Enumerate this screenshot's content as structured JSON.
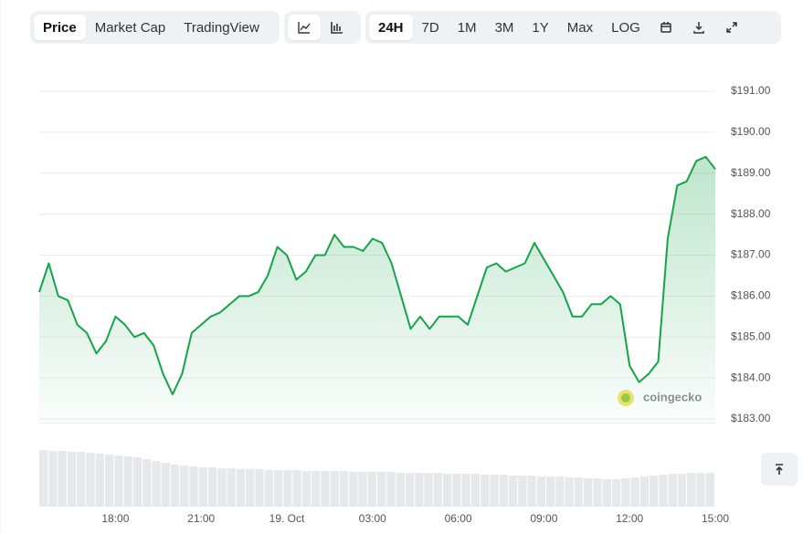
{
  "toolbar": {
    "views": [
      "Price",
      "Market Cap",
      "TradingView"
    ],
    "ranges": [
      "24H",
      "7D",
      "1M",
      "3M",
      "1Y",
      "Max",
      "LOG"
    ]
  },
  "chart_data": {
    "type": "line",
    "color": "#16a34a",
    "watermark": "coingecko",
    "categories": [
      null,
      null,
      null,
      null,
      null,
      null,
      null,
      null,
      "18:00",
      null,
      null,
      null,
      null,
      null,
      null,
      null,
      null,
      "21:00",
      null,
      null,
      null,
      null,
      null,
      null,
      null,
      null,
      "19. Oct",
      null,
      null,
      null,
      null,
      null,
      null,
      null,
      null,
      "03:00",
      null,
      null,
      null,
      null,
      null,
      null,
      null,
      null,
      "06:00",
      null,
      null,
      null,
      null,
      null,
      null,
      null,
      null,
      "09:00",
      null,
      null,
      null,
      null,
      null,
      null,
      null,
      null,
      "12:00",
      null,
      null,
      null,
      null,
      null,
      null,
      null,
      null,
      "15:00"
    ],
    "values": [
      186.1,
      186.8,
      186.0,
      185.9,
      185.3,
      185.1,
      184.6,
      184.9,
      185.5,
      185.3,
      185.0,
      185.1,
      184.8,
      184.1,
      183.6,
      184.1,
      185.1,
      185.3,
      185.5,
      185.6,
      185.8,
      186.0,
      186.0,
      186.1,
      186.5,
      187.2,
      187.0,
      186.4,
      186.6,
      187.0,
      187.0,
      187.5,
      187.2,
      187.2,
      187.1,
      187.4,
      187.3,
      186.8,
      186.0,
      185.2,
      185.5,
      185.2,
      185.5,
      185.5,
      185.5,
      185.3,
      186.0,
      186.7,
      186.8,
      186.6,
      186.7,
      186.8,
      187.3,
      186.9,
      186.5,
      186.1,
      185.5,
      185.5,
      185.8,
      185.8,
      186.0,
      185.8,
      184.3,
      183.9,
      184.1,
      184.4,
      187.4,
      188.7,
      188.8,
      189.3,
      189.4,
      189.1
    ],
    "volumes": {
      "color": "#e6e8eb",
      "values": [
        62,
        61,
        61,
        60,
        60,
        59,
        58,
        57,
        56,
        55,
        54,
        52,
        50,
        48,
        46,
        45,
        44,
        43,
        43,
        42,
        42,
        41,
        41,
        41,
        40,
        40,
        40,
        40,
        39,
        39,
        39,
        39,
        39,
        38,
        38,
        38,
        38,
        38,
        37,
        37,
        37,
        37,
        37,
        36,
        36,
        36,
        36,
        35,
        35,
        35,
        34,
        34,
        34,
        33,
        33,
        33,
        32,
        32,
        31,
        31,
        30,
        30,
        31,
        32,
        33,
        34,
        35,
        36,
        36,
        37,
        37,
        37
      ]
    },
    "ylim": [
      182.9,
      191.1
    ],
    "yticks": [
      {
        "value": 183,
        "label": "$183.00"
      },
      {
        "value": 184,
        "label": "$184.00"
      },
      {
        "value": 185,
        "label": "$185.00"
      },
      {
        "value": 186,
        "label": "$186.00"
      },
      {
        "value": 187,
        "label": "$187.00"
      },
      {
        "value": 188,
        "label": "$188.00"
      },
      {
        "value": 189,
        "label": "$189.00"
      },
      {
        "value": 190,
        "label": "$190.00"
      },
      {
        "value": 191,
        "label": "$191.00"
      }
    ],
    "grid": true
  }
}
